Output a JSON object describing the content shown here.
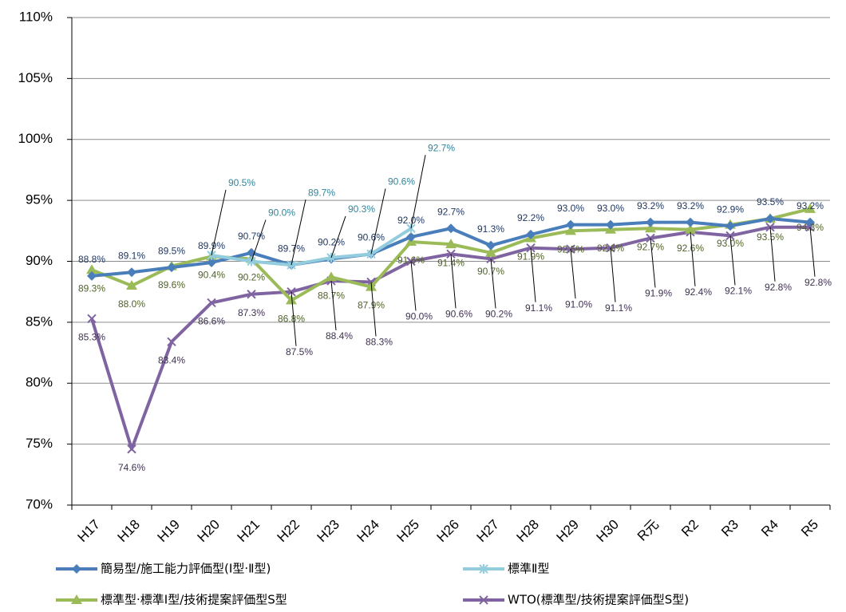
{
  "chart_data": {
    "type": "line",
    "categories": [
      "H17",
      "H18",
      "H19",
      "H20",
      "H21",
      "H22",
      "H23",
      "H24",
      "H25",
      "H26",
      "H27",
      "H28",
      "H29",
      "H30",
      "R元",
      "R2",
      "R3",
      "R4",
      "R5"
    ],
    "ylim": [
      70,
      110
    ],
    "yticks": [
      {
        "value": 70,
        "label": "70%"
      },
      {
        "value": 75,
        "label": "75%"
      },
      {
        "value": 80,
        "label": "80%"
      },
      {
        "value": 85,
        "label": "85%"
      },
      {
        "value": 90,
        "label": "90%"
      },
      {
        "value": 95,
        "label": "95%"
      },
      {
        "value": 100,
        "label": "100%"
      },
      {
        "value": 105,
        "label": "105%"
      },
      {
        "value": 110,
        "label": "110%"
      }
    ],
    "grid": true,
    "series": [
      {
        "name": "簡易型/施工能力評価型(Ⅰ型·Ⅱ型)",
        "color": "#4a7ebb",
        "marker": "diamond",
        "values": [
          88.8,
          89.1,
          89.5,
          89.9,
          90.7,
          89.7,
          90.2,
          90.6,
          92.0,
          92.7,
          91.3,
          92.2,
          93.0,
          93.0,
          93.2,
          93.2,
          92.9,
          93.5,
          93.2
        ],
        "value_labels": [
          "88.8%",
          "89.1%",
          "89.5%",
          "89.9%",
          "90.7%",
          "89.7%",
          "90.2%",
          "90.6%",
          "92.0%",
          "92.7%",
          "91.3%",
          "92.2%",
          "93.0%",
          "93.0%",
          "93.2%",
          "93.2%",
          "92.9%",
          "93.5%",
          "93.2%"
        ]
      },
      {
        "name": "標準Ⅱ型",
        "color": "#93cddd",
        "marker": "asterisk",
        "values": [
          null,
          null,
          null,
          90.5,
          90.0,
          89.7,
          90.3,
          90.6,
          92.7,
          null,
          null,
          null,
          null,
          null,
          null,
          null,
          null,
          null,
          null
        ],
        "value_labels": [
          null,
          null,
          null,
          "90.5%",
          "90.0%",
          "89.7%",
          "90.3%",
          "90.6%",
          "92.7%",
          null,
          null,
          null,
          null,
          null,
          null,
          null,
          null,
          null,
          null
        ]
      },
      {
        "name": "標準型·標準Ⅰ型/技術提案評価型S型",
        "color": "#9bbb59",
        "marker": "triangle",
        "values": [
          89.3,
          88.0,
          89.6,
          90.4,
          90.2,
          86.8,
          88.7,
          87.9,
          91.6,
          91.4,
          90.7,
          91.9,
          92.5,
          92.6,
          92.7,
          92.6,
          93.0,
          93.5,
          94.3
        ],
        "value_labels": [
          "89.3%",
          "88.0%",
          "89.6%",
          "90.4%",
          "90.2%",
          "86.8%",
          "88.7%",
          "87.9%",
          "91.6%",
          "91.4%",
          "90.7%",
          "91.9%",
          "92.5%",
          "92.6%",
          "92.7%",
          "92.6%",
          "93.0%",
          "93.5%",
          "94.3%"
        ]
      },
      {
        "name": "WTO(標準型/技術提案評価型S型)",
        "color": "#8064a2",
        "marker": "x",
        "values": [
          85.3,
          74.6,
          83.4,
          86.6,
          87.3,
          87.5,
          88.4,
          88.3,
          90.0,
          90.6,
          90.2,
          91.1,
          91.0,
          91.1,
          91.9,
          92.4,
          92.1,
          92.8,
          92.8
        ],
        "value_labels": [
          "85.3%",
          "74.6%",
          "83.4%",
          "86.6%",
          "87.3%",
          "87.5%",
          "88.4%",
          "88.3%",
          "90.0%",
          "90.6%",
          "90.2%",
          "91.1%",
          "91.0%",
          "91.1%",
          "91.9%",
          "92.4%",
          "92.1%",
          "92.8%",
          "92.8%"
        ]
      }
    ]
  }
}
